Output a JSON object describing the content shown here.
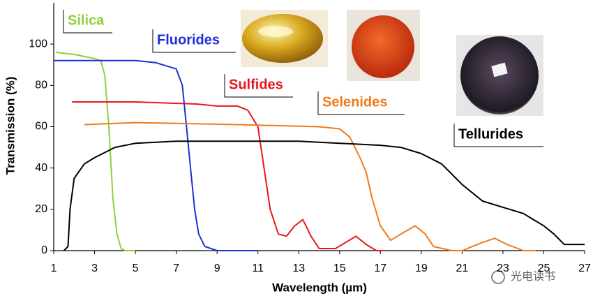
{
  "chart_data": {
    "type": "line",
    "xlabel": "Wavelength (µm)",
    "ylabel": "Transmission (%)",
    "xlim": [
      1,
      27
    ],
    "ylim": [
      0,
      120
    ],
    "xticks": [
      1,
      3,
      5,
      7,
      9,
      11,
      13,
      15,
      17,
      19,
      21,
      23,
      25,
      27
    ],
    "yticks": [
      0,
      20,
      40,
      60,
      80,
      100
    ],
    "series": [
      {
        "name": "Silica",
        "color": "#8fd13a",
        "x": [
          1.1,
          2.0,
          2.5,
          3.0,
          3.3,
          3.5,
          3.7,
          3.9,
          4.1,
          4.3,
          4.5,
          5.0
        ],
        "values": [
          96,
          95,
          94,
          93,
          92,
          85,
          60,
          25,
          8,
          1,
          0,
          0
        ]
      },
      {
        "name": "Fluorides",
        "color": "#1f2fd6",
        "x": [
          1.0,
          2.0,
          3.0,
          5.0,
          6.0,
          7.0,
          7.3,
          7.5,
          7.7,
          7.9,
          8.1,
          8.4,
          9.0,
          11.0
        ],
        "values": [
          92,
          92,
          92,
          92,
          91,
          88,
          80,
          60,
          40,
          20,
          8,
          2,
          0,
          0
        ]
      },
      {
        "name": "Sulfides",
        "color": "#e8171d",
        "x": [
          1.9,
          5.0,
          8.0,
          9.0,
          10.0,
          10.5,
          11.0,
          11.3,
          11.6,
          12.0,
          12.4,
          12.8,
          13.2,
          13.6,
          14.0,
          14.8,
          15.3,
          15.8,
          16.3,
          16.8,
          17.2
        ],
        "values": [
          72,
          72,
          71,
          70,
          70,
          68,
          60,
          40,
          20,
          8,
          7,
          12,
          15,
          7,
          1,
          1,
          4,
          7,
          3,
          0,
          0
        ]
      },
      {
        "name": "Selenides",
        "color": "#f07a1a",
        "x": [
          2.5,
          5.0,
          10.0,
          14.0,
          15.0,
          15.5,
          16.0,
          16.3,
          16.6,
          17.0,
          17.5,
          18.0,
          18.7,
          19.2,
          19.6,
          20.5,
          21.0,
          22.0,
          22.6,
          23.2,
          24.0,
          24.6
        ],
        "values": [
          61,
          62,
          61,
          60,
          59,
          55,
          45,
          38,
          25,
          12,
          5,
          8,
          12,
          8,
          2,
          0,
          0,
          4,
          6,
          3,
          0,
          0
        ]
      },
      {
        "name": "Tellurides",
        "color": "#000000",
        "x": [
          1.5,
          1.7,
          1.8,
          2.0,
          2.5,
          3.0,
          4.0,
          5.0,
          7.0,
          9.0,
          11.0,
          13.0,
          15.0,
          17.0,
          18.0,
          19.0,
          20.0,
          21.0,
          22.0,
          23.0,
          24.0,
          25.0,
          25.5,
          26.0,
          27.0
        ],
        "values": [
          0,
          2,
          20,
          35,
          42,
          45,
          50,
          52,
          53,
          53,
          53,
          53,
          52,
          51,
          50,
          47,
          42,
          32,
          24,
          21,
          18,
          12,
          8,
          3,
          3
        ]
      }
    ],
    "watermark": "光电读书"
  }
}
